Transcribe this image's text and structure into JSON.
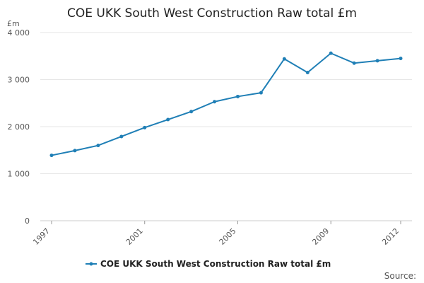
{
  "chart_data": {
    "type": "line",
    "title": "COE UKK South West Construction Raw total £m",
    "unit_label": "£m",
    "x": [
      1997,
      1998,
      1999,
      2000,
      2001,
      2002,
      2003,
      2004,
      2005,
      2006,
      2007,
      2008,
      2009,
      2010,
      2011,
      2012
    ],
    "x_tick_labels": [
      "1997",
      "2001",
      "2005",
      "2009",
      "2012"
    ],
    "y_tick_labels": [
      "0",
      "1 000",
      "2 000",
      "3 000",
      "4 000"
    ],
    "ylim": [
      0,
      4000
    ],
    "xlim": [
      1997,
      2012
    ],
    "grid": true,
    "legend_position": "bottom",
    "series": [
      {
        "name": "COE UKK South West Construction Raw total £m",
        "color": "#1f7fb6",
        "values": [
          1390,
          1490,
          1600,
          1790,
          1980,
          2150,
          2320,
          2530,
          2640,
          2720,
          3440,
          3150,
          3560,
          3350,
          3400,
          3450
        ]
      }
    ],
    "source_label": "Source:"
  }
}
